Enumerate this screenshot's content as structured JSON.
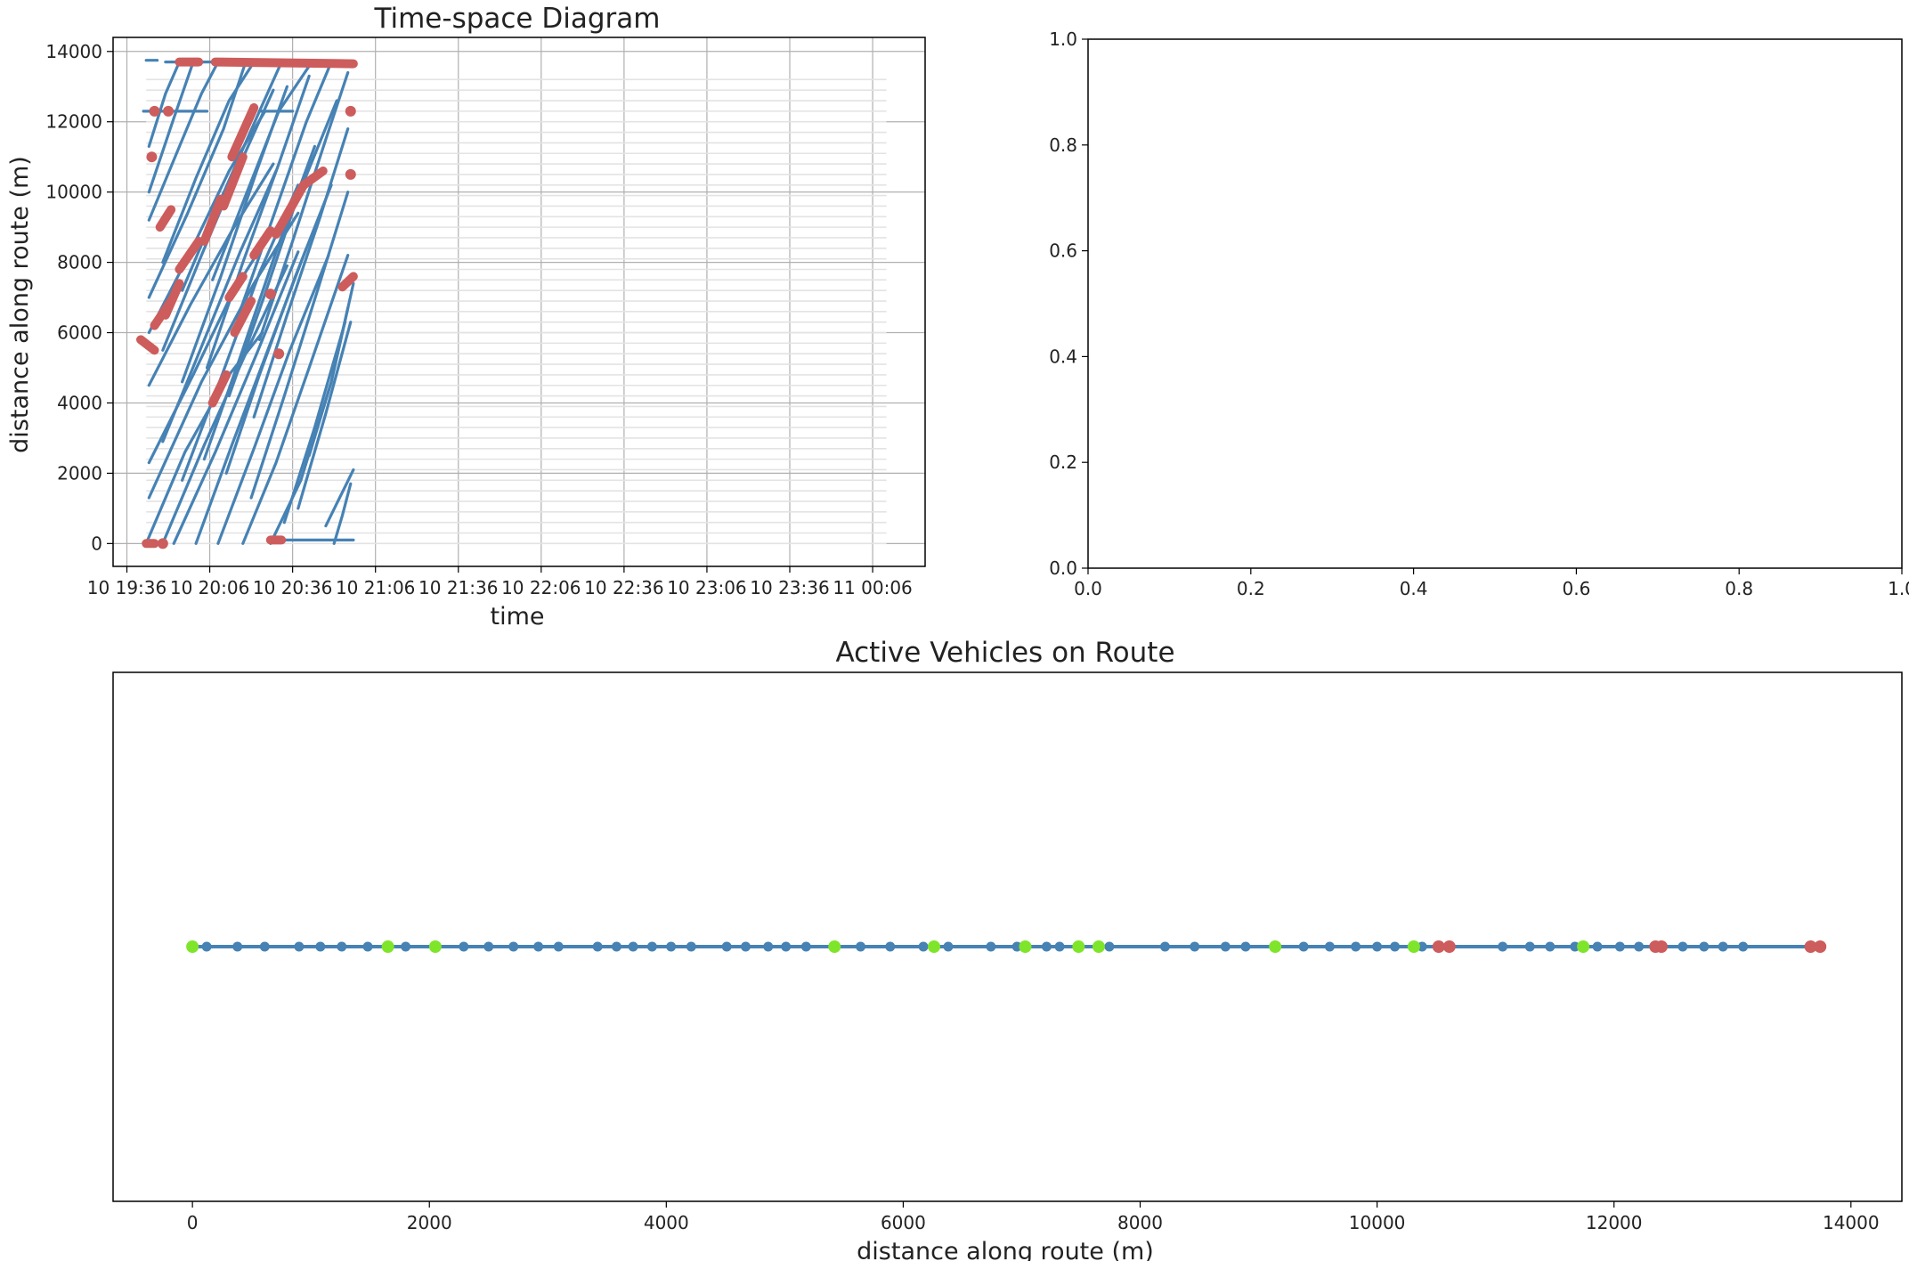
{
  "chart_data": [
    {
      "type": "line",
      "title": "Time-space Diagram",
      "xlabel": "time",
      "ylabel": "distance along route (m)",
      "x_ticks": [
        "10 19:36",
        "10 20:06",
        "10 20:36",
        "10 21:06",
        "10 21:36",
        "10 22:06",
        "10 22:36",
        "10 23:06",
        "10 23:36",
        "11 00:06"
      ],
      "x_tick_minutes": [
        1176,
        1206,
        1236,
        1266,
        1296,
        1326,
        1356,
        1386,
        1416,
        1446
      ],
      "xlim_minutes": [
        1171,
        1465
      ],
      "y_ticks": [
        "0",
        "2000",
        "4000",
        "6000",
        "8000",
        "10000",
        "12000",
        "14000"
      ],
      "y_tick_values": [
        0,
        2000,
        4000,
        6000,
        8000,
        10000,
        12000,
        14000
      ],
      "ylim": [
        -650,
        14400
      ],
      "grid": true,
      "data_end_minute": 1258,
      "schedule_span_minutes": [
        1183,
        1451
      ],
      "series_color": "#4682b4",
      "bunching_color": "#cd5c5c",
      "trajectories": [
        {
          "x": [
            1183,
            1197,
            1212,
            1225
          ],
          "y": [
            0,
            2600,
            4700,
            6000
          ]
        },
        {
          "x": [
            1184,
            1203,
            1222,
            1238
          ],
          "y": [
            1300,
            4600,
            7400,
            9400
          ]
        },
        {
          "x": [
            1184,
            1200,
            1214,
            1226
          ],
          "y": [
            2300,
            4800,
            7100,
            8600
          ]
        },
        {
          "x": [
            1184,
            1199,
            1214,
            1229
          ],
          "y": [
            4500,
            6800,
            8900,
            10800
          ]
        },
        {
          "x": [
            1184,
            1199,
            1213,
            1226
          ],
          "y": [
            6000,
            8300,
            10600,
            12300
          ]
        },
        {
          "x": [
            1184,
            1198,
            1211,
            1219
          ],
          "y": [
            7000,
            9400,
            11800,
            13700
          ]
        },
        {
          "x": [
            1184,
            1194,
            1203,
            1209
          ],
          "y": [
            9200,
            11100,
            12800,
            13700
          ]
        },
        {
          "x": [
            1184,
            1193,
            1200
          ],
          "y": [
            10000,
            12100,
            13700
          ]
        },
        {
          "x": [
            1184,
            1190,
            1195
          ],
          "y": [
            11300,
            12800,
            13700
          ]
        },
        {
          "x": [
            1189,
            1204,
            1219,
            1234
          ],
          "y": [
            0,
            2800,
            5400,
            7900
          ]
        },
        {
          "x": [
            1189,
            1203,
            1217,
            1230
          ],
          "y": [
            2900,
            5600,
            8300,
            10600
          ]
        },
        {
          "x": [
            1189,
            1203,
            1217,
            1229
          ],
          "y": [
            5500,
            8200,
            10800,
            12900
          ]
        },
        {
          "x": [
            1189,
            1201,
            1213,
            1222
          ],
          "y": [
            8000,
            10400,
            12600,
            13700
          ]
        },
        {
          "x": [
            1193,
            1208,
            1223,
            1238
          ],
          "y": [
            0,
            2600,
            5400,
            8300
          ]
        },
        {
          "x": [
            1196,
            1210,
            1224,
            1238
          ],
          "y": [
            1800,
            4700,
            7700,
            10200
          ]
        },
        {
          "x": [
            1196,
            1210,
            1223,
            1234
          ],
          "y": [
            4600,
            7600,
            10600,
            13000
          ]
        },
        {
          "x": [
            1196,
            1210,
            1224,
            1232
          ],
          "y": [
            7200,
            9800,
            12300,
            13700
          ]
        },
        {
          "x": [
            1201,
            1214,
            1227,
            1241
          ],
          "y": [
            0,
            2800,
            5500,
            8400
          ]
        },
        {
          "x": [
            1204,
            1217,
            1230,
            1244
          ],
          "y": [
            2400,
            5300,
            8300,
            11300
          ]
        },
        {
          "x": [
            1205,
            1218,
            1231,
            1242
          ],
          "y": [
            5000,
            8000,
            10800,
            13300
          ]
        },
        {
          "x": [
            1207,
            1219,
            1231,
            1243
          ],
          "y": [
            7500,
            9900,
            12300,
            13700
          ]
        },
        {
          "x": [
            1209,
            1222,
            1235,
            1249
          ],
          "y": [
            0,
            2700,
            5500,
            8200
          ]
        },
        {
          "x": [
            1212,
            1224,
            1237,
            1250
          ],
          "y": [
            2000,
            4800,
            7600,
            10200
          ]
        },
        {
          "x": [
            1213,
            1226,
            1238,
            1252
          ],
          "y": [
            4200,
            7100,
            9900,
            12600
          ]
        },
        {
          "x": [
            1216,
            1229,
            1241,
            1250
          ],
          "y": [
            6400,
            9300,
            12000,
            13700
          ]
        },
        {
          "x": [
            1218,
            1230,
            1242,
            1256
          ],
          "y": [
            0,
            2300,
            5000,
            8200
          ]
        },
        {
          "x": [
            1221,
            1233,
            1245,
            1256
          ],
          "y": [
            1300,
            4200,
            7200,
            10000
          ]
        },
        {
          "x": [
            1222,
            1234,
            1246,
            1256
          ],
          "y": [
            3600,
            6500,
            9300,
            11800
          ]
        },
        {
          "x": [
            1224,
            1236,
            1248,
            1256
          ],
          "y": [
            5800,
            8600,
            11500,
            13400
          ]
        },
        {
          "x": [
            1228,
            1239,
            1250,
            1258
          ],
          "y": [
            0,
            1800,
            4600,
            7400
          ]
        },
        {
          "x": [
            1233,
            1244,
            1255
          ],
          "y": [
            600,
            3300,
            6300
          ]
        },
        {
          "x": [
            1238,
            1248,
            1257
          ],
          "y": [
            1000,
            3700,
            6300
          ]
        },
        {
          "x": [
            1242,
            1250,
            1256
          ],
          "y": [
            2500,
            4600,
            6700
          ]
        },
        {
          "x": [
            1248,
            1253,
            1258
          ],
          "y": [
            500,
            1300,
            2100
          ]
        },
        {
          "x": [
            1251,
            1254,
            1257
          ],
          "y": [
            0,
            800,
            1700
          ]
        },
        {
          "x": [
            1190,
            1258
          ],
          "y": [
            13700,
            13700
          ]
        },
        {
          "x": [
            1183,
            1187
          ],
          "y": [
            13750,
            13750
          ]
        },
        {
          "x": [
            1182,
            1205
          ],
          "y": [
            12300,
            12300
          ]
        },
        {
          "x": [
            1224,
            1236
          ],
          "y": [
            12300,
            12300
          ]
        },
        {
          "x": [
            1228,
            1258
          ],
          "y": [
            100,
            100
          ]
        }
      ],
      "bunching_segments": [
        {
          "x": [
            1181,
            1186
          ],
          "y": [
            5800,
            5500
          ]
        },
        {
          "x": [
            1186,
            1192
          ],
          "y": [
            6200,
            6900
          ]
        },
        {
          "x": [
            1190,
            1195
          ],
          "y": [
            6500,
            7400
          ]
        },
        {
          "x": [
            1188,
            1192
          ],
          "y": [
            9000,
            9500
          ]
        },
        {
          "x": [
            1195,
            1202
          ],
          "y": [
            7800,
            8600
          ]
        },
        {
          "x": [
            1204,
            1210
          ],
          "y": [
            8600,
            9800
          ]
        },
        {
          "x": [
            1211,
            1218
          ],
          "y": [
            9600,
            11000
          ]
        },
        {
          "x": [
            1214,
            1222
          ],
          "y": [
            11000,
            12400
          ]
        },
        {
          "x": [
            1213,
            1218
          ],
          "y": [
            7000,
            7600
          ]
        },
        {
          "x": [
            1215,
            1221
          ],
          "y": [
            6000,
            6900
          ]
        },
        {
          "x": [
            1222,
            1228
          ],
          "y": [
            8200,
            8900
          ]
        },
        {
          "x": [
            1230,
            1240
          ],
          "y": [
            8800,
            10200
          ]
        },
        {
          "x": [
            1240,
            1247
          ],
          "y": [
            10200,
            10600
          ]
        },
        {
          "x": [
            1207,
            1212
          ],
          "y": [
            4000,
            4800
          ]
        },
        {
          "x": [
            1254,
            1258
          ],
          "y": [
            7300,
            7600
          ]
        },
        {
          "x": [
            1183,
            1186
          ],
          "y": [
            1,
            1
          ]
        },
        {
          "x": [
            1228,
            1232
          ],
          "y": [
            100,
            100
          ]
        },
        {
          "x": [
            1195,
            1202
          ],
          "y": [
            13700,
            13700
          ]
        },
        {
          "x": [
            1208,
            1258
          ],
          "y": [
            13700,
            13650
          ]
        }
      ],
      "bunching_points": [
        {
          "x": 1185,
          "y": 11000
        },
        {
          "x": 1186,
          "y": 12300
        },
        {
          "x": 1191,
          "y": 12300
        },
        {
          "x": 1257,
          "y": 12300
        },
        {
          "x": 1257,
          "y": 10500
        },
        {
          "x": 1189,
          "y": 0
        },
        {
          "x": 1231,
          "y": 5400
        },
        {
          "x": 1228,
          "y": 7100
        }
      ]
    },
    {
      "type": "scatter",
      "title": "",
      "xlabel": "",
      "ylabel": "",
      "xlim": [
        0,
        1
      ],
      "ylim": [
        0,
        1
      ],
      "x_ticks": [
        "0.0",
        "0.2",
        "0.4",
        "0.6",
        "0.8",
        "1.0"
      ],
      "x_tick_values": [
        0,
        0.2,
        0.4,
        0.6,
        0.8,
        1.0
      ],
      "y_ticks": [
        "0.0",
        "0.2",
        "0.4",
        "0.6",
        "0.8",
        "1.0"
      ],
      "y_tick_values": [
        0,
        0.2,
        0.4,
        0.6,
        0.8,
        1.0
      ],
      "grid": false,
      "series": []
    },
    {
      "type": "scatter",
      "title": "Active Vehicles on Route",
      "xlabel": "distance along route (m)",
      "ylabel": "",
      "xlim": [
        -670,
        14430
      ],
      "x_ticks": [
        "0",
        "2000",
        "4000",
        "6000",
        "8000",
        "10000",
        "12000",
        "14000"
      ],
      "x_tick_values": [
        0,
        2000,
        4000,
        6000,
        8000,
        10000,
        12000,
        14000
      ],
      "route_line": [
        0,
        13750
      ],
      "series": [
        {
          "color": "#4682b4",
          "values": [
            120,
            380,
            610,
            900,
            1080,
            1260,
            1480,
            1800,
            2290,
            2500,
            2710,
            2920,
            3090,
            3420,
            3580,
            3720,
            3880,
            4040,
            4210,
            4510,
            4670,
            4860,
            5010,
            5180,
            5640,
            5890,
            6170,
            6380,
            6740,
            6960,
            7210,
            7320,
            7740,
            8210,
            8460,
            8720,
            8890,
            9380,
            9600,
            9820,
            10000,
            10150,
            10380,
            11060,
            11290,
            11460,
            11670,
            11860,
            12050,
            12210,
            12580,
            12760,
            12920,
            13090
          ]
        },
        {
          "color": "#7fe52a",
          "values": [
            0,
            1650,
            2050,
            5420,
            6260,
            7030,
            7480,
            7650,
            9140,
            10310,
            11740
          ]
        },
        {
          "color": "#cd5c5c",
          "values": [
            10520,
            10610,
            12350,
            12400,
            13660,
            13740
          ]
        }
      ]
    }
  ]
}
